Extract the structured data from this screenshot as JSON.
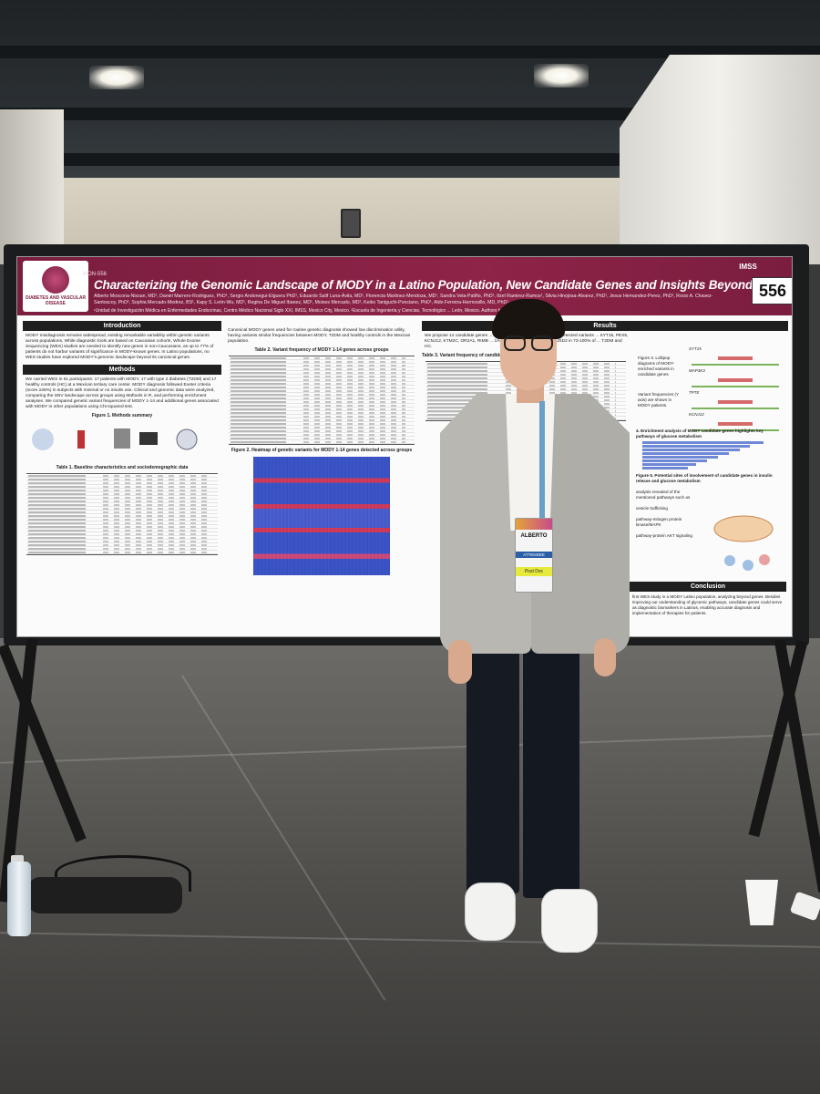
{
  "poster": {
    "id": "MON-556",
    "title": "Characterizing the Genomic Landscape of MODY in a Latino Population, New Candidate Genes and Insights Beyond MODY 1-14",
    "authors": "Alberto Moscona-Nissan, MD¹, Daniel Marrero-Rodriguez, PhD¹, Sergio Andonegui-Elguera PhD¹, Eduardo Salif Luna-Ávila, MD¹, Florencia Martinez-Mendoza, MD¹, Sandra Vela-Patiño, PhD¹, Itzel Ramirez-Ramos¹, Silvia Hinojosa-Alvarez, PhD¹, Jesus Hernandez-Perez, PhD¹, Rocio A. Chavez-Santoscoy, PhD², Sophia Mercado-Medrez, BS¹, Kapy S. León-Wu, MD¹, Regina De Miguel Ibanez, MD¹, Moises Mercado, MD¹, Keiko Taniguchi-Ponciano, PhD¹, Aldo Ferreira-Hermosillo, MD, PhD¹",
    "affiliation": "¹Unidad de Investigación Médica en Enfermedades Endocrinas, Centro Médico Nacional Siglo XXI, IMSS, Mexico City, Mexico. ²Escuela de Ingeniería y Ciencias, Tecnológico ... León, Mexico.   Authors have no conflicts of interest",
    "board_number": "556",
    "logo_left": "DIABETES AND VASCULAR DISEASE",
    "logo_right": "IMSS",
    "sections": {
      "introduction": {
        "heading": "Introduction",
        "text": "MODY misdiagnosis remains widespread, existing remarkable variability within genetic variants across populations. While diagnostic tools are based on Caucasian cohorts, Whole Exome Sequencing (WES) studies are needed to identify new genes in non-Caucasians, as up to 77% of patients do not harbor variants of significance in MODY-known genes. In Latino populations, no WES studies have explored MODY's genomic landscape beyond its canonical genes."
      },
      "methods": {
        "heading": "Methods",
        "text": "We carried WES in 51 participants: 17 patients with MODY, 17 with type 2 diabetes (T2DM) and 17 healthy controls (HC) at a Mexican tertiary care center. MODY diagnosis followed Exeter criteria (score ≥36%) in subjects with minimal or no insulin use. Clinical and genomic data were analyzed, comparing the SNV landscape across groups using Maftools in R, and performing enrichment analyses. We compared genetic variant frequencies of MODY 1-14 and additional genes associated with MODY in other populations using Chi-squared test.",
        "figure1": "Figure 1. Methods summary",
        "table1": "Table 1. Baseline characteristics and sociodemographic data"
      },
      "middle": {
        "text": "Canonical MODY genes used for routine genetic diagnosis showed low discrimination utility, having variants similar frequencies between MODY, T2DM and healthy controls in the Mexican population.",
        "table2": "Table 2. Variant frequency of MODY 1-14 genes across groups",
        "figure2": "Figure 2. Heatmap of genetic variants for MODY 1-14 genes detected across groups"
      },
      "results": {
        "heading": "Results",
        "text": "We propose 14 candidate genes ... MODY from T2DM and HC, as we detected variants ... SYT15, PEX5, KCNJ12, KTM2C, OR2A1, RIMB ... 1A4, RIMBP3B, ZNF717, and SUSD2 in 73-100% of ... T2DM and HC.",
        "table3": "Table 3. Variant frequency of candidate ... in the MODY group",
        "figure3": "Figure 3. Lollipop diagrams of MODY-enriched variants in candidate genes",
        "figure3_note": "Variant frequencies (Y axis) are shown in MODY patients.",
        "genes": [
          "SYT15",
          "MAP3K3",
          "TPTE",
          "KCNJ12"
        ],
        "figure4": "4. Enrichment analysis of MODY candidate genes highlights key pathways of glucose metabolism",
        "figure5": "Figure 5. Potential sites of involvement of candidate genes in insulin release and glucose metabolism",
        "figure5_labels": [
          "analysis revealed of the mentioned pathways such as",
          "vesicle trafficking",
          "pathway-mitogen protein kinase/MAPK",
          "pathway-protein AKT signaling"
        ]
      },
      "conclusion": {
        "heading": "Conclusion",
        "text": "first WES study in a MODY Latino population, analyzing beyond genes. Besides improving our understanding of glycemic pathways, candidate genes could serve as diagnostic biomarkers in Latinos, enabling accurate diagnosis and implementation of therapies for patients."
      }
    }
  },
  "badge": {
    "name": "ALBERTO",
    "role": "ATTENDEE",
    "tag": "Post Doc"
  }
}
